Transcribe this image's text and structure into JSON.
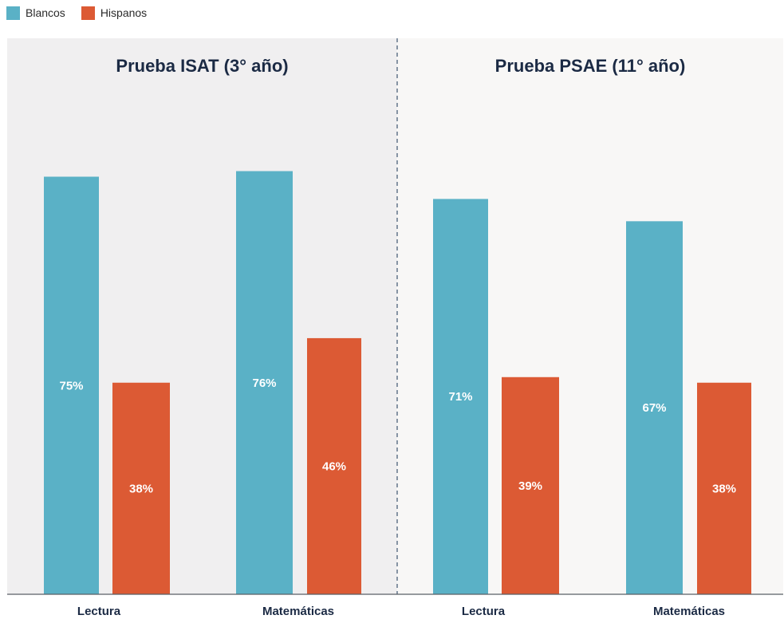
{
  "legend": {
    "series": [
      {
        "name": "Blancos",
        "color": "#5ab1c6"
      },
      {
        "name": "Hispanos",
        "color": "#dc5a34"
      }
    ]
  },
  "colors": {
    "panel_left_bg": "#f0eff0",
    "panel_right_bg": "#f8f7f6",
    "title": "#1b2a44",
    "value_label": "#ffffff",
    "axis": "#5a5f66"
  },
  "chart_data": [
    {
      "type": "bar",
      "title": "Prueba ISAT (3° año)",
      "categories": [
        "Lectura",
        "Matemáticas"
      ],
      "series": [
        {
          "name": "Blancos",
          "values": [
            75,
            76
          ],
          "labels": [
            "75%",
            "76%"
          ]
        },
        {
          "name": "Hispanos",
          "values": [
            38,
            46
          ],
          "labels": [
            "38%",
            "46%"
          ]
        }
      ],
      "ylim": [
        0,
        100
      ]
    },
    {
      "type": "bar",
      "title": "Prueba PSAE (11° año)",
      "categories": [
        "Lectura",
        "Matemáticas"
      ],
      "series": [
        {
          "name": "Blancos",
          "values": [
            71,
            67
          ],
          "labels": [
            "71%",
            "67%"
          ]
        },
        {
          "name": "Hispanos",
          "values": [
            39,
            38
          ],
          "labels": [
            "39%",
            "38%"
          ]
        }
      ],
      "ylim": [
        0,
        100
      ]
    }
  ]
}
